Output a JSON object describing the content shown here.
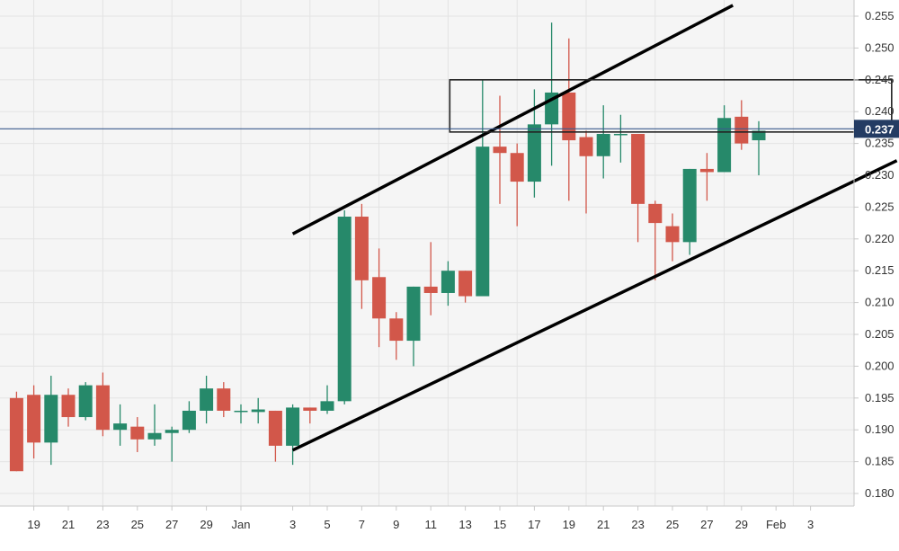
{
  "chart_data": {
    "type": "candlestick",
    "title": "",
    "xlabel": "",
    "ylabel": "",
    "ylim": [
      0.178,
      0.257
    ],
    "grid": true,
    "colors": {
      "up": "#26896a",
      "down": "#d2574a",
      "grid": "#e3e3e3",
      "price_line": "#3a5a8c",
      "price_tag_bg": "#243c63",
      "trendline": "#000000"
    },
    "x_tick_labels": [
      "19",
      "21",
      "23",
      "25",
      "27",
      "29",
      "Jan",
      "3",
      "5",
      "7",
      "9",
      "11",
      "13",
      "15",
      "17",
      "19",
      "21",
      "23",
      "25",
      "27",
      "29",
      "Feb",
      "3"
    ],
    "y_tick_labels": [
      "0.255",
      "0.250",
      "0.245",
      "0.240",
      "0.235",
      "0.230",
      "0.225",
      "0.220",
      "0.215",
      "0.210",
      "0.205",
      "0.200",
      "0.195",
      "0.190",
      "0.185",
      "0.180"
    ],
    "y_tick_values": [
      0.255,
      0.25,
      0.245,
      0.24,
      0.235,
      0.23,
      0.225,
      0.22,
      0.215,
      0.21,
      0.205,
      0.2,
      0.195,
      0.19,
      0.185,
      0.18
    ],
    "current_price": {
      "label": "0.237",
      "value": 0.2373
    },
    "candles": [
      {
        "day": -13,
        "open": 0.195,
        "high": 0.196,
        "low": 0.1835,
        "close": 0.1835
      },
      {
        "day": -12,
        "open": 0.1955,
        "high": 0.197,
        "low": 0.1855,
        "close": 0.188
      },
      {
        "day": -11,
        "open": 0.188,
        "high": 0.1985,
        "low": 0.1845,
        "close": 0.1955
      },
      {
        "day": -10,
        "open": 0.1955,
        "high": 0.1965,
        "low": 0.1905,
        "close": 0.192
      },
      {
        "day": -9,
        "open": 0.192,
        "high": 0.1975,
        "low": 0.1915,
        "close": 0.197
      },
      {
        "day": -8,
        "open": 0.197,
        "high": 0.199,
        "low": 0.189,
        "close": 0.19
      },
      {
        "day": -7,
        "open": 0.19,
        "high": 0.194,
        "low": 0.1875,
        "close": 0.191
      },
      {
        "day": -6,
        "open": 0.1905,
        "high": 0.192,
        "low": 0.1865,
        "close": 0.1885
      },
      {
        "day": -5,
        "open": 0.1885,
        "high": 0.194,
        "low": 0.1875,
        "close": 0.1895
      },
      {
        "day": -4,
        "open": 0.1895,
        "high": 0.1905,
        "low": 0.185,
        "close": 0.19
      },
      {
        "day": -3,
        "open": 0.19,
        "high": 0.1945,
        "low": 0.1895,
        "close": 0.193
      },
      {
        "day": -2,
        "open": 0.193,
        "high": 0.1985,
        "low": 0.191,
        "close": 0.1965
      },
      {
        "day": -1,
        "open": 0.1965,
        "high": 0.1975,
        "low": 0.192,
        "close": 0.193
      },
      {
        "day": 0,
        "open": 0.193,
        "high": 0.194,
        "low": 0.191,
        "close": 0.193
      },
      {
        "day": 1,
        "open": 0.1928,
        "high": 0.195,
        "low": 0.191,
        "close": 0.1932
      },
      {
        "day": 2,
        "open": 0.193,
        "high": 0.193,
        "low": 0.185,
        "close": 0.1875
      },
      {
        "day": 3,
        "open": 0.1875,
        "high": 0.194,
        "low": 0.1845,
        "close": 0.1935
      },
      {
        "day": 4,
        "open": 0.1935,
        "high": 0.1935,
        "low": 0.191,
        "close": 0.193
      },
      {
        "day": 5,
        "open": 0.193,
        "high": 0.197,
        "low": 0.1925,
        "close": 0.1945
      },
      {
        "day": 6,
        "open": 0.1945,
        "high": 0.2245,
        "low": 0.194,
        "close": 0.2235
      },
      {
        "day": 7,
        "open": 0.2235,
        "high": 0.2255,
        "low": 0.209,
        "close": 0.2135
      },
      {
        "day": 8,
        "open": 0.214,
        "high": 0.2185,
        "low": 0.203,
        "close": 0.2075
      },
      {
        "day": 9,
        "open": 0.2075,
        "high": 0.2085,
        "low": 0.201,
        "close": 0.204
      },
      {
        "day": 10,
        "open": 0.204,
        "high": 0.2125,
        "low": 0.2,
        "close": 0.2125
      },
      {
        "day": 11,
        "open": 0.2125,
        "high": 0.2195,
        "low": 0.208,
        "close": 0.2115
      },
      {
        "day": 12,
        "open": 0.2115,
        "high": 0.2165,
        "low": 0.2095,
        "close": 0.215
      },
      {
        "day": 13,
        "open": 0.215,
        "high": 0.215,
        "low": 0.21,
        "close": 0.211
      },
      {
        "day": 14,
        "open": 0.211,
        "high": 0.245,
        "low": 0.211,
        "close": 0.2345
      },
      {
        "day": 15,
        "open": 0.2345,
        "high": 0.2425,
        "low": 0.2255,
        "close": 0.2335
      },
      {
        "day": 16,
        "open": 0.2335,
        "high": 0.235,
        "low": 0.222,
        "close": 0.229
      },
      {
        "day": 17,
        "open": 0.229,
        "high": 0.2435,
        "low": 0.2265,
        "close": 0.238
      },
      {
        "day": 18,
        "open": 0.238,
        "high": 0.254,
        "low": 0.2315,
        "close": 0.243
      },
      {
        "day": 19,
        "open": 0.243,
        "high": 0.2515,
        "low": 0.226,
        "close": 0.2355
      },
      {
        "day": 20,
        "open": 0.236,
        "high": 0.237,
        "low": 0.224,
        "close": 0.233
      },
      {
        "day": 21,
        "open": 0.233,
        "high": 0.241,
        "low": 0.2295,
        "close": 0.2365
      },
      {
        "day": 22,
        "open": 0.2365,
        "high": 0.2395,
        "low": 0.232,
        "close": 0.2365
      },
      {
        "day": 23,
        "open": 0.2365,
        "high": 0.2365,
        "low": 0.2195,
        "close": 0.2255
      },
      {
        "day": 24,
        "open": 0.2255,
        "high": 0.226,
        "low": 0.2135,
        "close": 0.2225
      },
      {
        "day": 25,
        "open": 0.222,
        "high": 0.224,
        "low": 0.2165,
        "close": 0.2195
      },
      {
        "day": 26,
        "open": 0.2195,
        "high": 0.231,
        "low": 0.2175,
        "close": 0.231
      },
      {
        "day": 27,
        "open": 0.231,
        "high": 0.2335,
        "low": 0.226,
        "close": 0.2305
      },
      {
        "day": 28,
        "open": 0.2305,
        "high": 0.241,
        "low": 0.2305,
        "close": 0.239
      },
      {
        "day": 29,
        "open": 0.2392,
        "high": 0.2418,
        "low": 0.234,
        "close": 0.235
      },
      {
        "day": 30,
        "open": 0.2355,
        "high": 0.2385,
        "low": 0.23,
        "close": 0.237
      }
    ],
    "annotations": {
      "upper_trendline": {
        "start": {
          "day": 3,
          "price": 0.2208
        },
        "end": {
          "day": 28.5,
          "price": 0.2567
        }
      },
      "lower_trendline": {
        "start": {
          "day": 3,
          "price": 0.1868
        },
        "end": {
          "day": 38,
          "price": 0.2323
        }
      },
      "resistance_box": {
        "day_from": 12.1,
        "day_to": 37.7,
        "price_from": 0.2368,
        "price_to": 0.245
      }
    }
  }
}
